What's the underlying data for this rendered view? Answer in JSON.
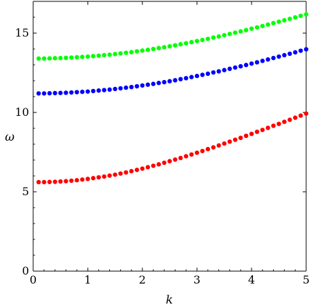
{
  "chart_data": {
    "type": "scatter",
    "xlabel": "k",
    "ylabel": "ω",
    "xlim": [
      0,
      5
    ],
    "ylim": [
      0,
      17
    ],
    "xticks": [
      0,
      1,
      2,
      3,
      4,
      5
    ],
    "yticks": [
      0,
      5,
      10,
      15
    ],
    "grid": false,
    "legend": "none",
    "series": [
      {
        "color": "#ff0000",
        "x": [
          0.1,
          0.2,
          0.3,
          0.4,
          0.5,
          0.6,
          0.7,
          0.8,
          0.9,
          1.0,
          1.1,
          1.2,
          1.3,
          1.4,
          1.5,
          1.6,
          1.7,
          1.8,
          1.9,
          2.0,
          2.1,
          2.2,
          2.3,
          2.4,
          2.5,
          2.6,
          2.7,
          2.8,
          2.9,
          3.0,
          3.1,
          3.2,
          3.3,
          3.4,
          3.5,
          3.6,
          3.7,
          3.8,
          3.9,
          4.0,
          4.1,
          4.2,
          4.3,
          4.4,
          4.5,
          4.6,
          4.7,
          4.8,
          4.9,
          5.0
        ],
        "y": [
          5.61,
          5.61,
          5.62,
          5.63,
          5.65,
          5.67,
          5.7,
          5.73,
          5.77,
          5.81,
          5.86,
          5.91,
          5.96,
          6.02,
          6.08,
          6.15,
          6.22,
          6.3,
          6.38,
          6.46,
          6.55,
          6.64,
          6.73,
          6.83,
          6.93,
          7.03,
          7.13,
          7.24,
          7.35,
          7.46,
          7.57,
          7.69,
          7.8,
          7.92,
          8.04,
          8.16,
          8.28,
          8.4,
          8.53,
          8.65,
          8.78,
          8.9,
          9.03,
          9.16,
          9.28,
          9.41,
          9.54,
          9.67,
          9.8,
          9.93
        ]
      },
      {
        "color": "#0000ff",
        "x": [
          0.1,
          0.2,
          0.3,
          0.4,
          0.5,
          0.6,
          0.7,
          0.8,
          0.9,
          1.0,
          1.1,
          1.2,
          1.3,
          1.4,
          1.5,
          1.6,
          1.7,
          1.8,
          1.9,
          2.0,
          2.1,
          2.2,
          2.3,
          2.4,
          2.5,
          2.6,
          2.7,
          2.8,
          2.9,
          3.0,
          3.1,
          3.2,
          3.3,
          3.4,
          3.5,
          3.6,
          3.7,
          3.8,
          3.9,
          4.0,
          4.1,
          4.2,
          4.3,
          4.4,
          4.5,
          4.6,
          4.7,
          4.8,
          4.9,
          5.0
        ],
        "y": [
          11.2,
          11.2,
          11.21,
          11.22,
          11.23,
          11.24,
          11.26,
          11.28,
          11.3,
          11.32,
          11.35,
          11.38,
          11.41,
          11.44,
          11.48,
          11.52,
          11.56,
          11.6,
          11.65,
          11.7,
          11.75,
          11.8,
          11.86,
          11.91,
          11.97,
          12.03,
          12.1,
          12.16,
          12.23,
          12.3,
          12.37,
          12.44,
          12.52,
          12.59,
          12.67,
          12.75,
          12.83,
          12.91,
          12.99,
          13.08,
          13.16,
          13.25,
          13.34,
          13.43,
          13.52,
          13.61,
          13.7,
          13.79,
          13.89,
          13.98
        ]
      },
      {
        "color": "#00ff00",
        "x": [
          0.1,
          0.2,
          0.3,
          0.4,
          0.5,
          0.6,
          0.7,
          0.8,
          0.9,
          1.0,
          1.1,
          1.2,
          1.3,
          1.4,
          1.5,
          1.6,
          1.7,
          1.8,
          1.9,
          2.0,
          2.1,
          2.2,
          2.3,
          2.4,
          2.5,
          2.6,
          2.7,
          2.8,
          2.9,
          3.0,
          3.1,
          3.2,
          3.3,
          3.4,
          3.5,
          3.6,
          3.7,
          3.8,
          3.9,
          4.0,
          4.1,
          4.2,
          4.3,
          4.4,
          4.5,
          4.6,
          4.7,
          4.8,
          4.9,
          5.0
        ],
        "y": [
          13.4,
          13.4,
          13.41,
          13.42,
          13.43,
          13.44,
          13.46,
          13.48,
          13.5,
          13.52,
          13.55,
          13.58,
          13.61,
          13.64,
          13.68,
          13.72,
          13.76,
          13.8,
          13.85,
          13.9,
          13.95,
          14.0,
          14.06,
          14.11,
          14.17,
          14.23,
          14.3,
          14.36,
          14.43,
          14.5,
          14.57,
          14.64,
          14.72,
          14.79,
          14.87,
          14.95,
          15.03,
          15.11,
          15.19,
          15.28,
          15.36,
          15.45,
          15.54,
          15.63,
          15.72,
          15.81,
          15.9,
          15.99,
          16.09,
          16.18
        ]
      }
    ]
  }
}
